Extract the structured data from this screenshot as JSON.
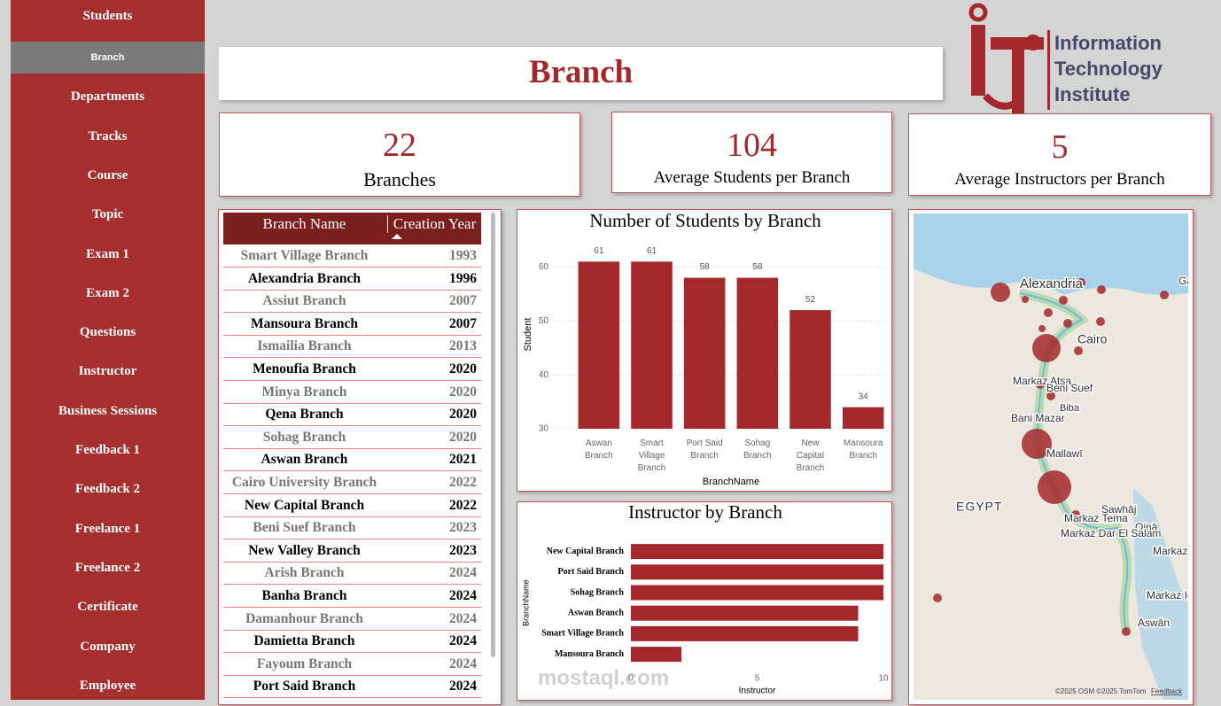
{
  "nav": {
    "items": [
      {
        "label": "Students"
      },
      {
        "label": "Branch",
        "active": true
      },
      {
        "label": "Departments"
      },
      {
        "label": "Tracks"
      },
      {
        "label": "Course"
      },
      {
        "label": "Topic"
      },
      {
        "label": "Exam 1"
      },
      {
        "label": "Exam 2"
      },
      {
        "label": "Questions"
      },
      {
        "label": "Instructor"
      },
      {
        "label": "Business Sessions"
      },
      {
        "label": "Feedback 1"
      },
      {
        "label": "Feedback 2"
      },
      {
        "label": "Freelance 1"
      },
      {
        "label": "Freelance 2"
      },
      {
        "label": "Certificate"
      },
      {
        "label": "Company"
      },
      {
        "label": "Employee"
      }
    ]
  },
  "header": {
    "title": "Branch"
  },
  "logo": {
    "lines": [
      "Information",
      "Technology",
      "Institute"
    ]
  },
  "kpis": [
    {
      "value": 22,
      "label": "Branches"
    },
    {
      "value": 104,
      "label": "Average Students per Branch"
    },
    {
      "value": 5,
      "label": "Average Instructors per Branch"
    }
  ],
  "table": {
    "headers": [
      "Branch Name",
      "Creation Year"
    ],
    "rows": [
      [
        "Smart Village Branch",
        1993
      ],
      [
        "Alexandria Branch",
        1996
      ],
      [
        "Assiut Branch",
        2007
      ],
      [
        "Mansoura Branch",
        2007
      ],
      [
        "Ismailia Branch",
        2013
      ],
      [
        "Menoufia Branch",
        2020
      ],
      [
        "Minya Branch",
        2020
      ],
      [
        "Qena Branch",
        2020
      ],
      [
        "Sohag Branch",
        2020
      ],
      [
        "Aswan Branch",
        2021
      ],
      [
        "Cairo University Branch",
        2022
      ],
      [
        "New Capital Branch",
        2022
      ],
      [
        "Beni Suef Branch",
        2023
      ],
      [
        "New Valley Branch",
        2023
      ],
      [
        "Arish Branch",
        2024
      ],
      [
        "Banha Branch",
        2024
      ],
      [
        "Damanhour Branch",
        2024
      ],
      [
        "Damietta Branch",
        2024
      ],
      [
        "Fayoum Branch",
        2024
      ],
      [
        "Port Said Branch",
        2024
      ]
    ]
  },
  "chart_data": [
    {
      "type": "bar",
      "title": "Number of Students by Branch",
      "x_label": "BranchName",
      "y_label": "Student",
      "categories": [
        "Aswan Branch",
        "Smart Village Branch",
        "Port Said Branch",
        "Sohag Branch",
        "New Capital Branch",
        "Mansoura Branch"
      ],
      "values": [
        61,
        61,
        58,
        58,
        52,
        34
      ],
      "color": "#a4282b",
      "ylim": [
        30,
        65
      ],
      "yticks": [
        30,
        40,
        50,
        60
      ],
      "grid": true,
      "data_labels": true
    },
    {
      "type": "hbar",
      "title": "Instructor by Branch",
      "x_label": "Instructor",
      "y_label": "BranchName",
      "categories": [
        "New Capital Branch",
        "Port Said Branch",
        "Sohag Branch",
        "Aswan Branch",
        "Smart Village Branch",
        "Mansoura Branch"
      ],
      "values": [
        10,
        10,
        10,
        9,
        9,
        2
      ],
      "color": "#a4282b",
      "xlim": [
        0,
        10
      ],
      "xticks": [
        0,
        5,
        10
      ]
    }
  ],
  "map": {
    "labels": [
      "Alexandria",
      "Cairo",
      "Markaz Atsa",
      "Beni Suef",
      "Bani Mazar",
      "Biba",
      "Mallawī",
      "EGYPT",
      "Markaz Tema",
      "Sawhāj",
      "Qinā",
      "Markaz Dar El Salam",
      "Markaz Neqada",
      "Markaz Idfo",
      "Aswān",
      "Gaza"
    ],
    "credit": "©2025 OSM ©2025 TomTom",
    "feedback": "Feedback"
  },
  "watermark": "mostaql.com"
}
